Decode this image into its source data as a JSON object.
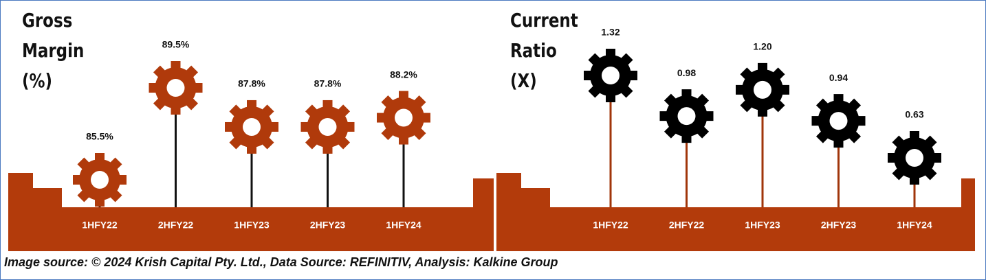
{
  "chart_data": [
    {
      "type": "gear-lollipop",
      "title": "Gross Margin (%)",
      "categories": [
        "1HFY22",
        "2HFY22",
        "1HFY23",
        "2HFY23",
        "1HFY24"
      ],
      "values": [
        85.5,
        89.5,
        87.8,
        87.8,
        88.2
      ],
      "value_labels": [
        "85.5%",
        "89.5%",
        "87.8%",
        "87.8%",
        "88.2%"
      ],
      "color": "#b03a0b",
      "stem_color": "#111111"
    },
    {
      "type": "gear-lollipop",
      "title": "Current Ratio (X)",
      "categories": [
        "1HFY22",
        "2HFY22",
        "1HFY23",
        "2HFY23",
        "1HFY24"
      ],
      "values": [
        1.32,
        0.98,
        1.2,
        0.94,
        0.63
      ],
      "value_labels": [
        "1.32",
        "0.98",
        "1.20",
        "0.94",
        "0.63"
      ],
      "color": "#000000",
      "stem_color": "#a0350a"
    }
  ],
  "source": "Image source: © 2024 Krish Capital Pty. Ltd., Data Source: REFINITIV, Analysis: Kalkine Group"
}
